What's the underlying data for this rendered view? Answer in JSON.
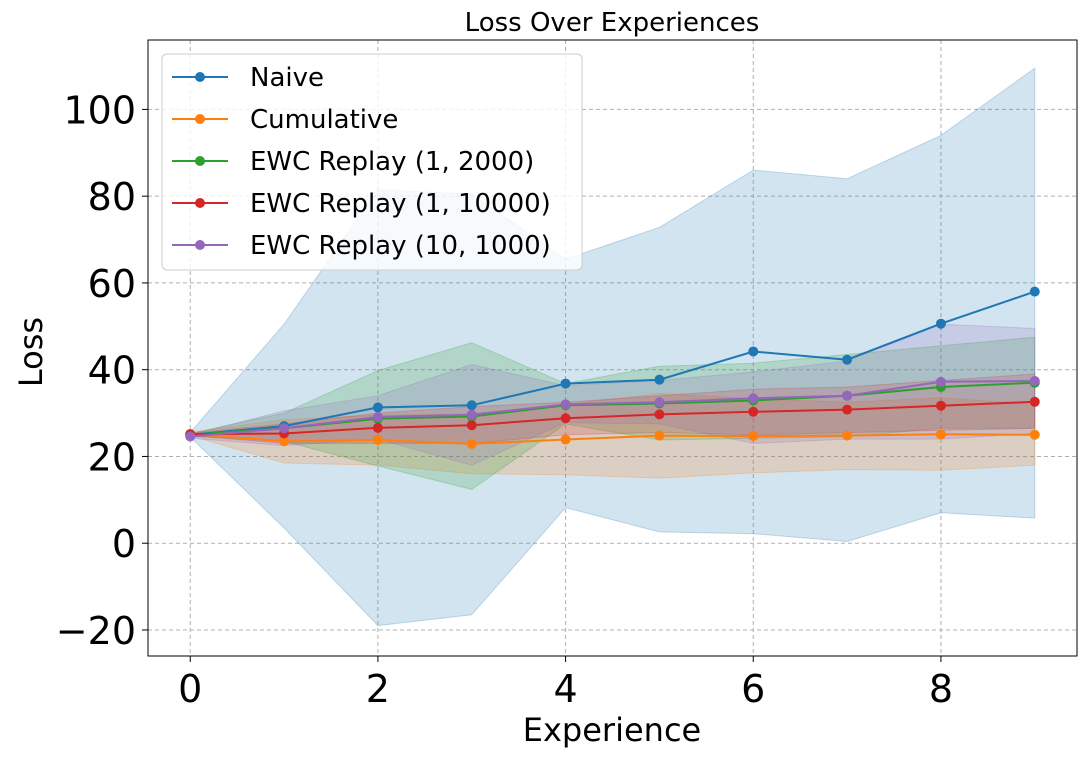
{
  "chart_data": {
    "type": "line",
    "title": "Loss Over Experiences",
    "xlabel": "Experience",
    "ylabel": "Loss",
    "xlim": [
      -0.45,
      9.45
    ],
    "ylim": [
      -26,
      116
    ],
    "xticks": [
      0,
      2,
      4,
      6,
      8
    ],
    "yticks": [
      -20,
      0,
      20,
      40,
      60,
      80,
      100
    ],
    "ytick_labels": [
      "−20",
      "0",
      "20",
      "40",
      "60",
      "80",
      "100"
    ],
    "grid": true,
    "legend_position": "top-left",
    "x": [
      0,
      1,
      2,
      3,
      4,
      5,
      6,
      7,
      8,
      9
    ],
    "series": [
      {
        "name": "Naive",
        "color": "#1f77b4",
        "values": [
          25.0,
          27.0,
          31.3,
          31.8,
          36.8,
          37.7,
          44.2,
          42.3,
          50.6,
          58.0
        ],
        "band_upper": [
          25.5,
          50.5,
          81.5,
          80.5,
          65.5,
          72.8,
          86.0,
          84.0,
          94.0,
          109.5
        ],
        "band_lower": [
          24.5,
          3.5,
          -19.0,
          -16.5,
          8.2,
          2.6,
          2.2,
          0.4,
          7.0,
          5.8
        ]
      },
      {
        "name": "Cumulative",
        "color": "#ff7f0e",
        "values": [
          25.2,
          23.5,
          23.8,
          22.9,
          23.9,
          24.8,
          24.7,
          24.8,
          25.1,
          25.0
        ],
        "band_upper": [
          25.6,
          28.5,
          29.5,
          29.8,
          32.0,
          34.5,
          33.3,
          32.5,
          33.5,
          32.0
        ],
        "band_lower": [
          24.8,
          18.5,
          18.0,
          16.0,
          15.8,
          15.0,
          16.2,
          17.0,
          16.8,
          18.0
        ]
      },
      {
        "name": "EWC Replay (1, 2000)",
        "color": "#2ca02c",
        "values": [
          25.0,
          26.5,
          28.7,
          29.2,
          31.8,
          32.2,
          32.9,
          34.0,
          36.0,
          37.0
        ],
        "band_upper": [
          25.3,
          30.0,
          39.8,
          46.2,
          36.8,
          40.8,
          41.5,
          43.5,
          45.5,
          47.5
        ],
        "band_lower": [
          24.7,
          23.5,
          17.8,
          12.4,
          27.5,
          23.8,
          24.2,
          24.5,
          26.5,
          26.5
        ]
      },
      {
        "name": "EWC Replay (1, 10000)",
        "color": "#d62728",
        "values": [
          25.1,
          25.3,
          26.6,
          27.2,
          28.8,
          29.7,
          30.3,
          30.8,
          31.7,
          32.6
        ],
        "band_upper": [
          25.4,
          27.5,
          30.0,
          31.5,
          32.5,
          34.0,
          35.5,
          36.0,
          37.5,
          39.0
        ],
        "band_lower": [
          24.8,
          23.0,
          23.0,
          23.0,
          25.0,
          25.5,
          25.0,
          25.5,
          26.0,
          26.5
        ]
      },
      {
        "name": "EWC Replay (10, 1000)",
        "color": "#9467bd",
        "values": [
          24.6,
          26.5,
          29.1,
          29.6,
          32.0,
          32.5,
          33.4,
          34.0,
          37.2,
          37.4
        ],
        "band_upper": [
          25.0,
          30.5,
          34.0,
          41.2,
          36.3,
          37.5,
          39.5,
          42.0,
          50.5,
          49.5
        ],
        "band_lower": [
          24.2,
          22.5,
          24.0,
          18.0,
          27.8,
          27.5,
          23.0,
          24.0,
          24.0,
          25.3
        ]
      }
    ]
  }
}
